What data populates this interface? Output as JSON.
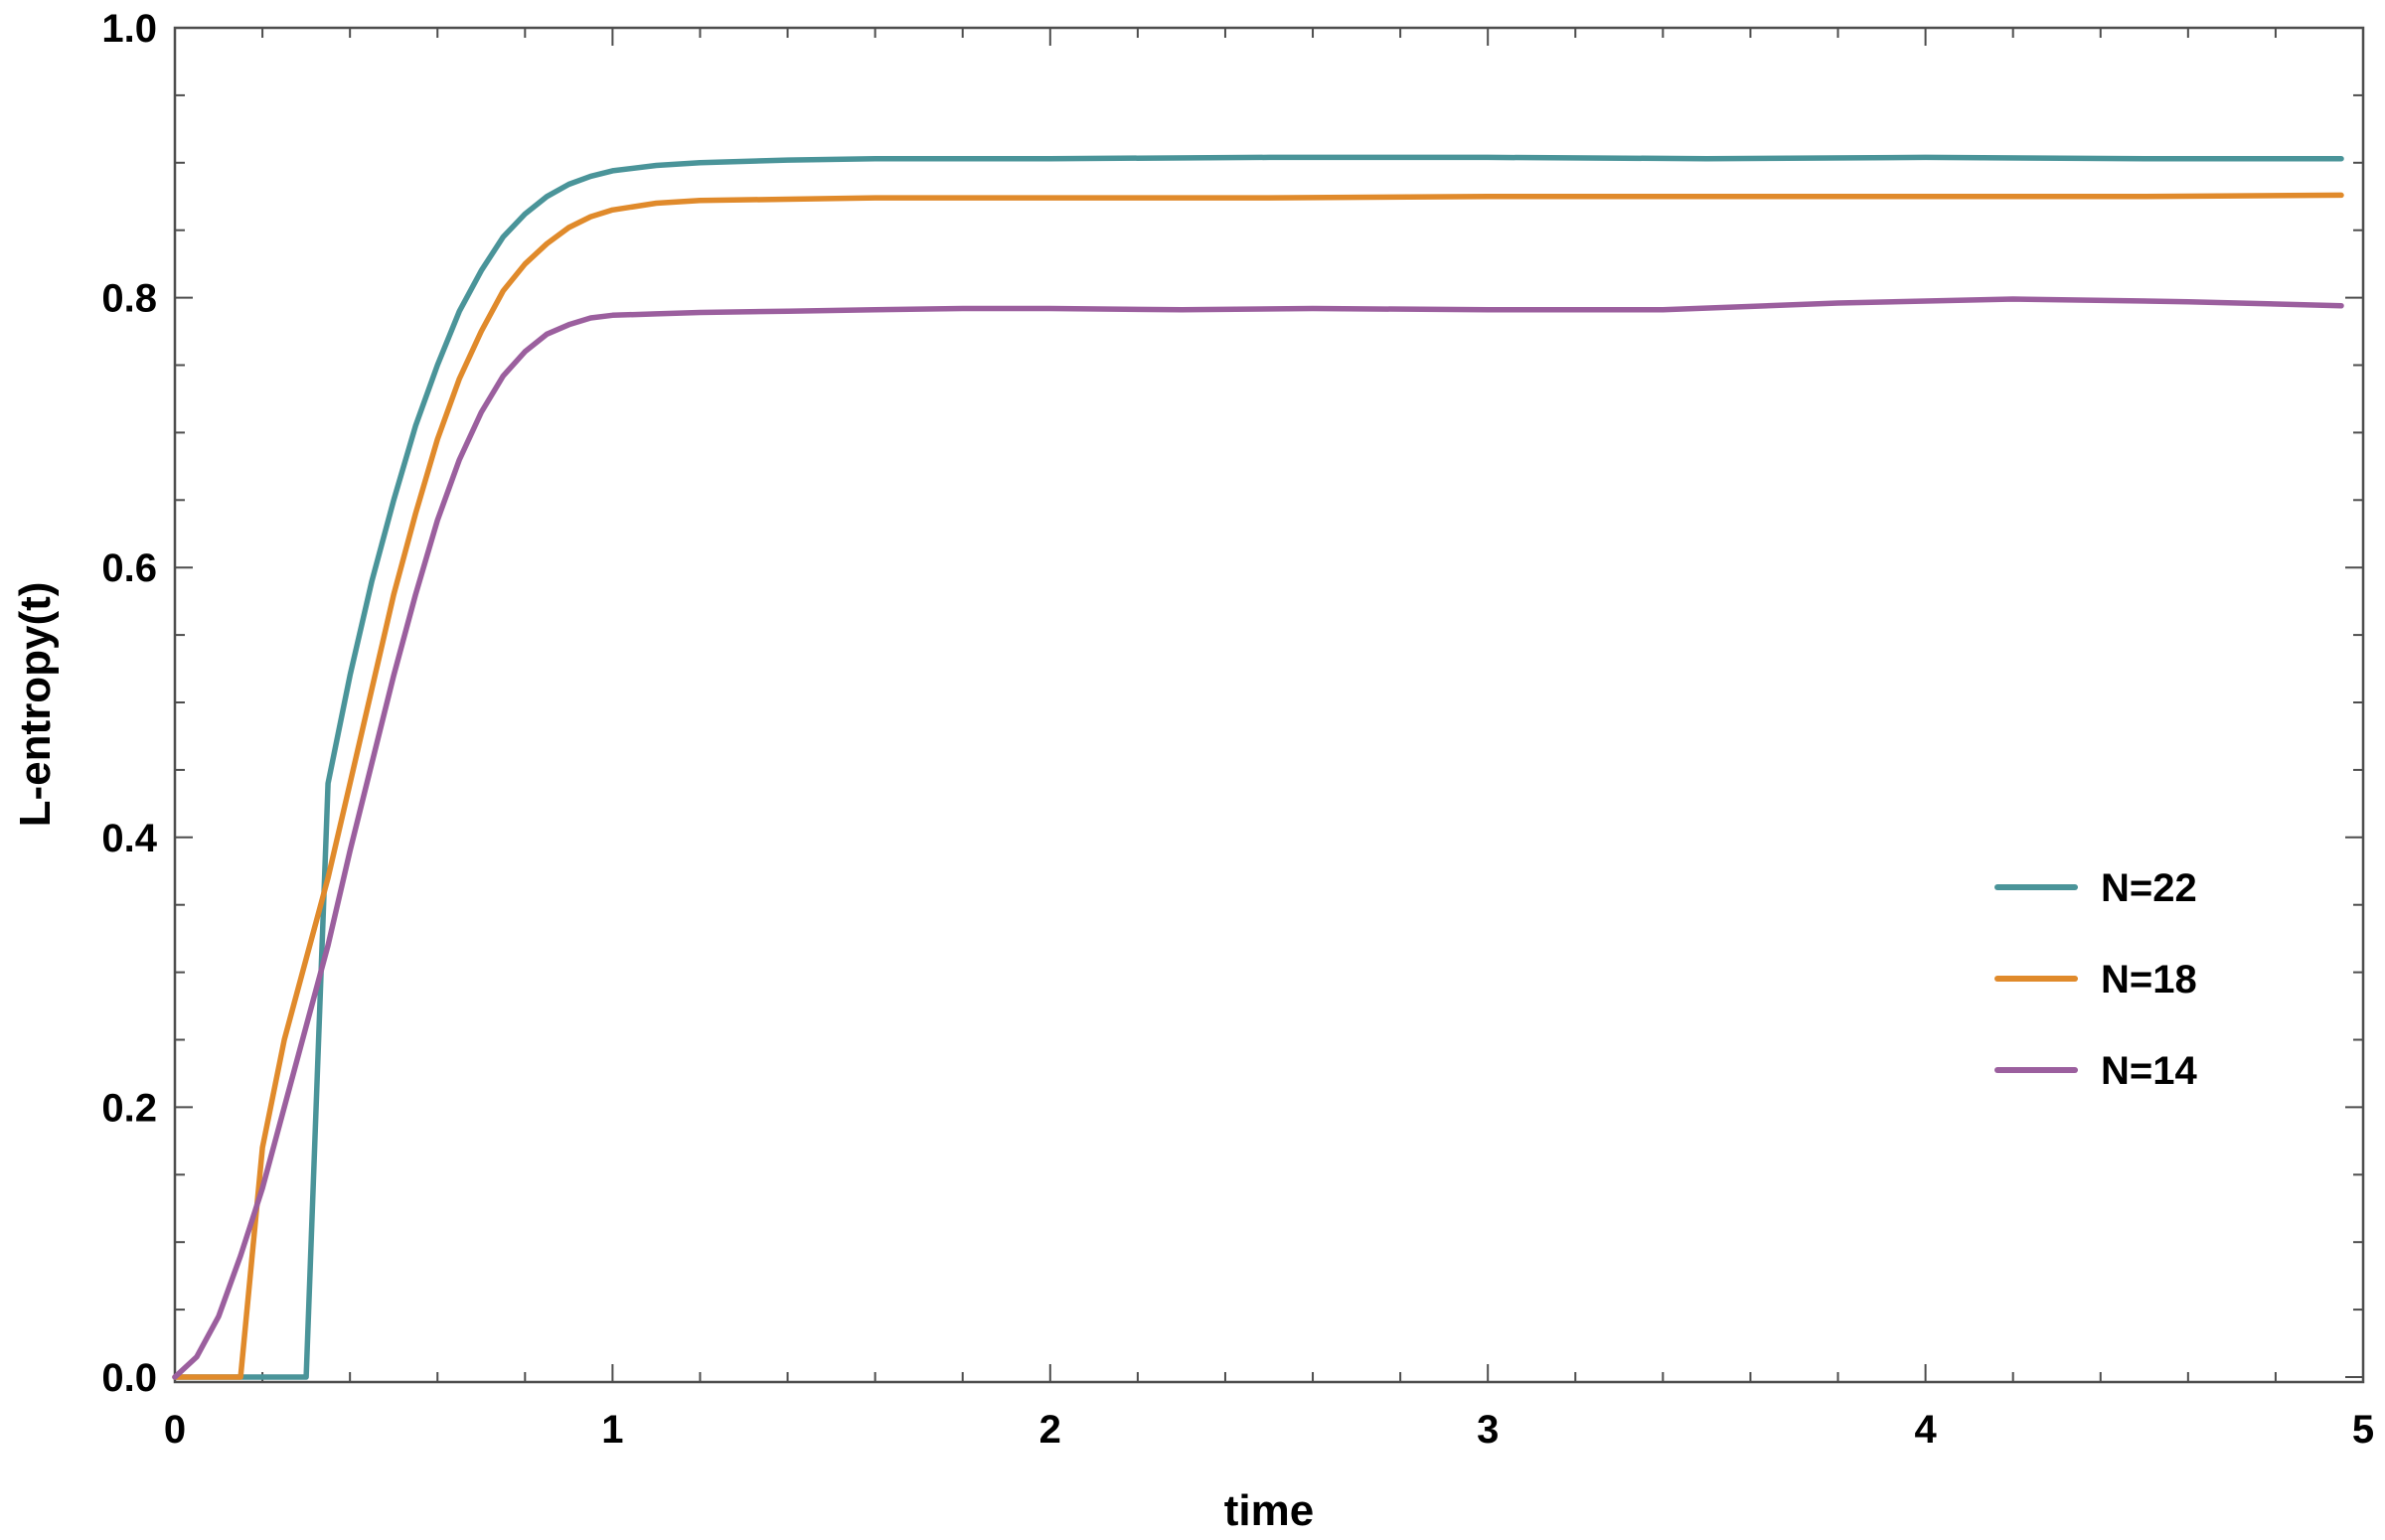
{
  "chart_data": {
    "type": "line",
    "title": "",
    "xlabel": "time",
    "ylabel": "L-entropy(t)",
    "xlim": [
      0,
      5
    ],
    "ylim": [
      0,
      1
    ],
    "x_ticks": [
      0,
      1,
      2,
      3,
      4,
      5
    ],
    "x_tick_labels": [
      "0",
      "1",
      "2",
      "3",
      "4",
      "5"
    ],
    "y_ticks": [
      0.0,
      0.2,
      0.4,
      0.6,
      0.8,
      1.0
    ],
    "y_tick_labels": [
      "0.0",
      "0.2",
      "0.4",
      "0.6",
      "0.8",
      "1.0"
    ],
    "grid": false,
    "legend_position": "right",
    "series": [
      {
        "name": "N=22",
        "color": "#4a9499",
        "x": [
          0,
          0.3,
          0.35,
          0.4,
          0.45,
          0.5,
          0.55,
          0.6,
          0.65,
          0.7,
          0.75,
          0.8,
          0.85,
          0.9,
          0.95,
          1.0,
          1.1,
          1.2,
          1.4,
          1.6,
          1.8,
          2.0,
          2.5,
          3.0,
          3.5,
          4.0,
          4.5,
          4.95
        ],
        "y": [
          0,
          0,
          0.44,
          0.52,
          0.59,
          0.65,
          0.705,
          0.75,
          0.79,
          0.82,
          0.845,
          0.862,
          0.875,
          0.884,
          0.89,
          0.894,
          0.898,
          0.9,
          0.902,
          0.903,
          0.903,
          0.903,
          0.904,
          0.904,
          0.903,
          0.904,
          0.903,
          0.903
        ]
      },
      {
        "name": "N=18",
        "color": "#e08a2b",
        "x": [
          0,
          0.15,
          0.2,
          0.25,
          0.3,
          0.35,
          0.4,
          0.45,
          0.5,
          0.55,
          0.6,
          0.65,
          0.7,
          0.75,
          0.8,
          0.85,
          0.9,
          0.95,
          1.0,
          1.1,
          1.2,
          1.4,
          1.6,
          1.8,
          2.0,
          2.5,
          3.0,
          3.5,
          4.0,
          4.5,
          4.95
        ],
        "y": [
          0,
          0,
          0.17,
          0.25,
          0.31,
          0.37,
          0.44,
          0.51,
          0.58,
          0.64,
          0.695,
          0.74,
          0.775,
          0.805,
          0.825,
          0.84,
          0.852,
          0.86,
          0.865,
          0.87,
          0.872,
          0.873,
          0.874,
          0.874,
          0.874,
          0.874,
          0.875,
          0.875,
          0.875,
          0.875,
          0.876
        ]
      },
      {
        "name": "N=14",
        "color": "#9b5f9e",
        "x": [
          0,
          0.05,
          0.1,
          0.15,
          0.2,
          0.25,
          0.3,
          0.35,
          0.4,
          0.45,
          0.5,
          0.55,
          0.6,
          0.65,
          0.7,
          0.75,
          0.8,
          0.85,
          0.9,
          0.95,
          1.0,
          1.1,
          1.2,
          1.4,
          1.6,
          1.8,
          2.0,
          2.3,
          2.6,
          3.0,
          3.4,
          3.8,
          4.2,
          4.6,
          4.95
        ],
        "y": [
          0,
          0.015,
          0.045,
          0.09,
          0.14,
          0.2,
          0.26,
          0.32,
          0.39,
          0.455,
          0.52,
          0.58,
          0.635,
          0.68,
          0.715,
          0.742,
          0.76,
          0.773,
          0.78,
          0.785,
          0.787,
          0.788,
          0.789,
          0.79,
          0.791,
          0.792,
          0.792,
          0.791,
          0.792,
          0.791,
          0.791,
          0.796,
          0.799,
          0.797,
          0.794
        ]
      }
    ]
  }
}
